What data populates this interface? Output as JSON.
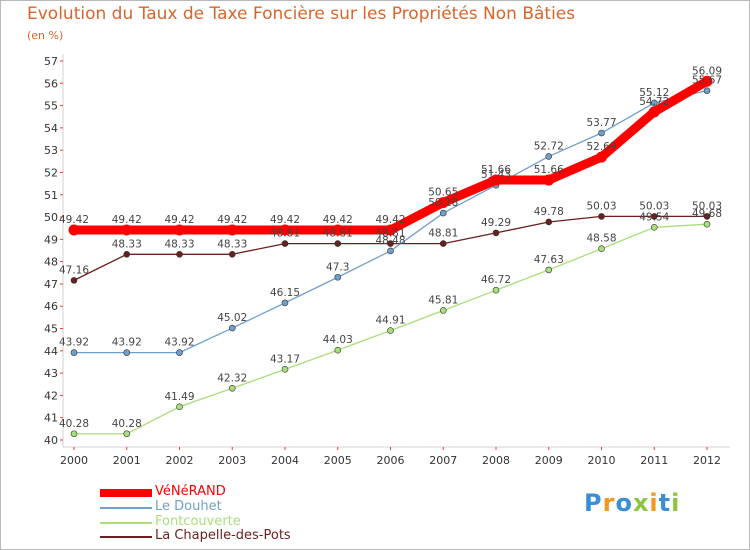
{
  "title": "Evolution du Taux de Taxe Foncière sur les Propriétés Non Bâties",
  "unit_label": "(en %)",
  "legend": [
    {
      "label": "VéNéRAND",
      "color": "#ff0000"
    },
    {
      "label": "Le Douhet",
      "color": "#6fa0cc"
    },
    {
      "label": "Fontcouverte",
      "color": "#a9df7a"
    },
    {
      "label": "La Chapelle-des-Pots",
      "color": "#6b1f1f"
    }
  ],
  "logo": {
    "text": "Proxiti",
    "letter_colors": [
      "#3a8fd4",
      "#f19a1e",
      "#3a8fd4",
      "#8cc63f",
      "#f19a1e",
      "#3a8fd4",
      "#8cc63f"
    ]
  },
  "chart_data": {
    "type": "line",
    "x": [
      "2000",
      "2001",
      "2002",
      "2003",
      "2004",
      "2005",
      "2006",
      "2007",
      "2008",
      "2009",
      "2010",
      "2011",
      "2012"
    ],
    "yticks": [
      "40",
      "41",
      "42",
      "43",
      "44",
      "45",
      "46",
      "47",
      "48",
      "49",
      "50",
      "51",
      "52",
      "53",
      "54",
      "55",
      "56",
      "57"
    ],
    "ylim": [
      40,
      57
    ],
    "grid": false,
    "series": [
      {
        "name": "VéNéRAND",
        "color": "#ff0000",
        "values": [
          49.42,
          49.42,
          49.42,
          49.42,
          49.42,
          49.42,
          49.42,
          50.65,
          51.66,
          51.66,
          52.69,
          54.72,
          56.09
        ],
        "labels": [
          "49.42",
          "49.42",
          "49.42",
          "49.42",
          "49.42",
          "49.42",
          "49.42",
          "50.65",
          "51.66",
          "51.66",
          "52.69",
          "54.72",
          "56.09"
        ]
      },
      {
        "name": "Le Douhet",
        "color": "#6fa0cc",
        "values": [
          43.92,
          43.92,
          43.92,
          45.02,
          46.15,
          47.3,
          48.48,
          50.18,
          51.43,
          52.72,
          53.77,
          55.12,
          55.67
        ],
        "labels": [
          "43.92",
          "43.92",
          "43.92",
          "45.02",
          "46.15",
          "47.3",
          "48.48",
          "50.18",
          "51.43",
          "52.72",
          "53.77",
          "55.12",
          "55.67"
        ]
      },
      {
        "name": "Fontcouverte",
        "color": "#a9df7a",
        "values": [
          40.28,
          40.28,
          41.49,
          42.32,
          43.17,
          44.03,
          44.91,
          45.81,
          46.72,
          47.63,
          48.58,
          49.54,
          49.68
        ],
        "labels": [
          "40.28",
          "40.28",
          "41.49",
          "42.32",
          "43.17",
          "44.03",
          "44.91",
          "45.81",
          "46.72",
          "47.63",
          "48.58",
          "49.54",
          "49.68"
        ]
      },
      {
        "name": "La Chapelle-des-Pots",
        "color": "#6b1f1f",
        "values": [
          47.16,
          48.33,
          48.33,
          48.33,
          48.81,
          48.81,
          48.81,
          48.81,
          49.29,
          49.78,
          50.03,
          50.03,
          50.03
        ],
        "labels": [
          "47.16",
          "48.33",
          "48.33",
          "48.33",
          "48.81",
          "48.81",
          "48.81",
          "48.81",
          "49.29",
          "49.78",
          "50.03",
          "50.03",
          "50.03"
        ]
      }
    ]
  }
}
